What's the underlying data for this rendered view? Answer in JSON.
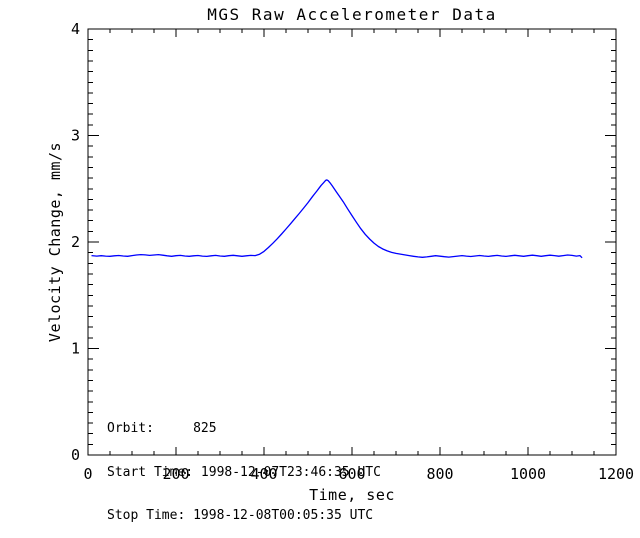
{
  "chart_data": {
    "type": "line",
    "title": "MGS Raw Accelerometer Data",
    "xlabel": "Time, sec",
    "ylabel": "Velocity Change, mm/s",
    "xlim": [
      0,
      1200
    ],
    "ylim": [
      0,
      4
    ],
    "xticks": [
      0,
      200,
      400,
      600,
      800,
      1000,
      1200
    ],
    "yticks": [
      0,
      1,
      2,
      3,
      4
    ],
    "x_minor_step": 50,
    "y_minor_step": 0.1,
    "grid": false,
    "legend": "none",
    "background_color": "#ffffff",
    "axis_color": "#000000",
    "annotations": [
      "Orbit:     825",
      "Start Time: 1998-12-07T23:46:35 UTC",
      "Stop Time: 1998-12-08T00:05:35 UTC"
    ],
    "series": [
      {
        "name": "velocity-change",
        "color": "#0000ff",
        "points": [
          [
            8,
            1.872
          ],
          [
            20,
            1.868
          ],
          [
            30,
            1.871
          ],
          [
            40,
            1.868
          ],
          [
            50,
            1.866
          ],
          [
            60,
            1.87
          ],
          [
            70,
            1.873
          ],
          [
            80,
            1.869
          ],
          [
            90,
            1.866
          ],
          [
            100,
            1.872
          ],
          [
            110,
            1.878
          ],
          [
            120,
            1.882
          ],
          [
            130,
            1.879
          ],
          [
            140,
            1.874
          ],
          [
            150,
            1.878
          ],
          [
            160,
            1.882
          ],
          [
            170,
            1.876
          ],
          [
            180,
            1.87
          ],
          [
            190,
            1.866
          ],
          [
            200,
            1.871
          ],
          [
            210,
            1.874
          ],
          [
            220,
            1.869
          ],
          [
            230,
            1.866
          ],
          [
            240,
            1.87
          ],
          [
            250,
            1.873
          ],
          [
            260,
            1.868
          ],
          [
            270,
            1.865
          ],
          [
            280,
            1.87
          ],
          [
            290,
            1.874
          ],
          [
            300,
            1.869
          ],
          [
            310,
            1.866
          ],
          [
            320,
            1.871
          ],
          [
            330,
            1.875
          ],
          [
            340,
            1.87
          ],
          [
            350,
            1.866
          ],
          [
            360,
            1.87
          ],
          [
            370,
            1.874
          ],
          [
            380,
            1.872
          ],
          [
            390,
            1.885
          ],
          [
            400,
            1.912
          ],
          [
            410,
            1.948
          ],
          [
            420,
            1.988
          ],
          [
            430,
            2.03
          ],
          [
            440,
            2.075
          ],
          [
            450,
            2.122
          ],
          [
            460,
            2.17
          ],
          [
            470,
            2.219
          ],
          [
            480,
            2.268
          ],
          [
            490,
            2.318
          ],
          [
            500,
            2.37
          ],
          [
            510,
            2.425
          ],
          [
            515,
            2.452
          ],
          [
            520,
            2.478
          ],
          [
            525,
            2.505
          ],
          [
            530,
            2.532
          ],
          [
            535,
            2.555
          ],
          [
            540,
            2.578
          ],
          [
            543,
            2.583
          ],
          [
            546,
            2.576
          ],
          [
            550,
            2.556
          ],
          [
            555,
            2.528
          ],
          [
            560,
            2.498
          ],
          [
            565,
            2.468
          ],
          [
            570,
            2.438
          ],
          [
            580,
            2.378
          ],
          [
            590,
            2.312
          ],
          [
            600,
            2.248
          ],
          [
            610,
            2.185
          ],
          [
            620,
            2.125
          ],
          [
            630,
            2.072
          ],
          [
            640,
            2.028
          ],
          [
            650,
            1.99
          ],
          [
            660,
            1.958
          ],
          [
            670,
            1.934
          ],
          [
            680,
            1.916
          ],
          [
            690,
            1.902
          ],
          [
            700,
            1.893
          ],
          [
            710,
            1.886
          ],
          [
            720,
            1.879
          ],
          [
            730,
            1.872
          ],
          [
            740,
            1.866
          ],
          [
            750,
            1.86
          ],
          [
            760,
            1.856
          ],
          [
            770,
            1.86
          ],
          [
            780,
            1.866
          ],
          [
            790,
            1.871
          ],
          [
            800,
            1.867
          ],
          [
            810,
            1.862
          ],
          [
            820,
            1.858
          ],
          [
            830,
            1.863
          ],
          [
            840,
            1.868
          ],
          [
            850,
            1.872
          ],
          [
            860,
            1.868
          ],
          [
            870,
            1.864
          ],
          [
            880,
            1.869
          ],
          [
            890,
            1.873
          ],
          [
            900,
            1.869
          ],
          [
            910,
            1.865
          ],
          [
            920,
            1.87
          ],
          [
            930,
            1.874
          ],
          [
            940,
            1.869
          ],
          [
            950,
            1.865
          ],
          [
            960,
            1.87
          ],
          [
            970,
            1.875
          ],
          [
            980,
            1.87
          ],
          [
            990,
            1.866
          ],
          [
            1000,
            1.871
          ],
          [
            1010,
            1.876
          ],
          [
            1020,
            1.871
          ],
          [
            1030,
            1.866
          ],
          [
            1040,
            1.871
          ],
          [
            1050,
            1.876
          ],
          [
            1060,
            1.872
          ],
          [
            1070,
            1.867
          ],
          [
            1080,
            1.872
          ],
          [
            1090,
            1.878
          ],
          [
            1100,
            1.874
          ],
          [
            1110,
            1.868
          ],
          [
            1118,
            1.872
          ],
          [
            1123,
            1.852
          ]
        ]
      }
    ]
  }
}
